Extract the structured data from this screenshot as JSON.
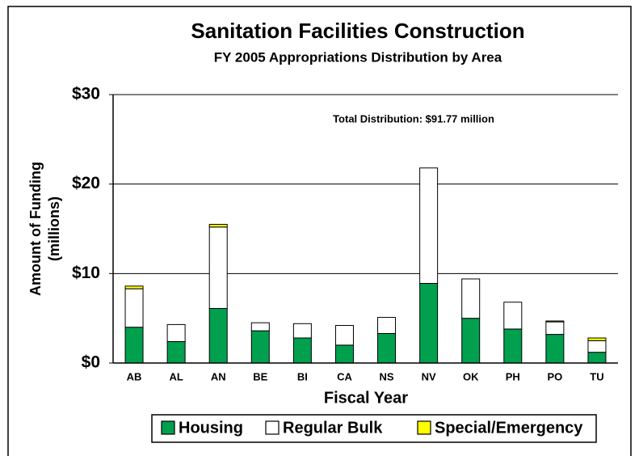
{
  "chart_data": {
    "type": "stacked_bar",
    "title": "Sanitation Facilities Construction",
    "subtitle": "FY 2005 Appropriations Distribution by Area",
    "annotation": "Total Distribution: $91.77 million",
    "ylabel": [
      "Amount of Funding",
      "(millions)"
    ],
    "xlabel": "Fiscal Year",
    "categories": [
      "AB",
      "AL",
      "AN",
      "BE",
      "BI",
      "CA",
      "NS",
      "NV",
      "OK",
      "PH",
      "PO",
      "TU"
    ],
    "series": [
      {
        "name": "Housing",
        "color": "#00a04e",
        "values": [
          4.0,
          2.4,
          6.1,
          3.6,
          2.8,
          2.0,
          3.3,
          8.9,
          5.0,
          3.8,
          3.2,
          1.2
        ]
      },
      {
        "name": "Regular Bulk",
        "color": "#ffffff",
        "values": [
          4.3,
          1.9,
          9.1,
          0.9,
          1.6,
          2.2,
          1.8,
          12.9,
          4.4,
          3.0,
          1.4,
          1.3
        ]
      },
      {
        "name": "Special/Emergency",
        "color": "#ffff00",
        "values": [
          0.3,
          0,
          0.3,
          0,
          0,
          0,
          0,
          0,
          0,
          0,
          0.1,
          0.3
        ]
      }
    ],
    "ylim": [
      0,
      30
    ],
    "yticks": [
      {
        "value": 0,
        "label": "$0"
      },
      {
        "value": 10,
        "label": "$10"
      },
      {
        "value": 20,
        "label": "$20"
      },
      {
        "value": 30,
        "label": "$30"
      }
    ],
    "grid": true
  }
}
